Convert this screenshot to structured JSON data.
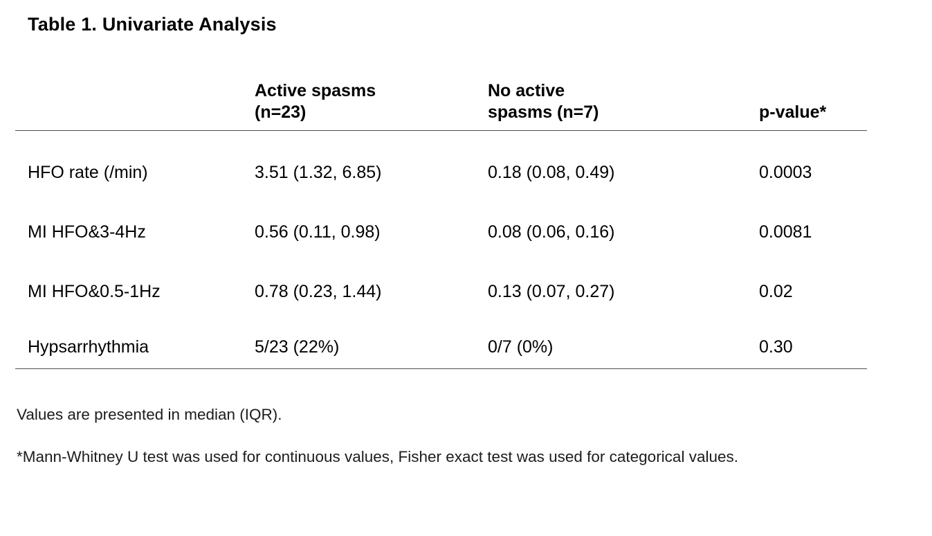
{
  "title": "Table 1. Univariate Analysis",
  "table": {
    "columns": {
      "label": "",
      "active": "Active spasms\n(n=23)",
      "no_active": "No active\nspasms (n=7)",
      "p_value": "p-value*"
    },
    "rows": [
      {
        "label": "HFO rate (/min)",
        "active": "3.51 (1.32, 6.85)",
        "no_active": "0.18 (0.08, 0.49)",
        "p_value": "0.0003"
      },
      {
        "label": "MI HFO&3-4Hz",
        "active": "0.56 (0.11, 0.98)",
        "no_active": "0.08 (0.06, 0.16)",
        "p_value": "0.0081"
      },
      {
        "label": "MI HFO&0.5-1Hz",
        "active": "0.78 (0.23, 1.44)",
        "no_active": "0.13 (0.07, 0.27)",
        "p_value": "0.02"
      },
      {
        "label": "Hypsarrhythmia",
        "active": "5/23 (22%)",
        "no_active": "0/7 (0%)",
        "p_value": "0.30"
      }
    ]
  },
  "footnotes": {
    "line1": "Values are presented in median (IQR).",
    "line2": "*Mann-Whitney U test was used for continuous values, Fisher exact test was used for categorical values."
  }
}
